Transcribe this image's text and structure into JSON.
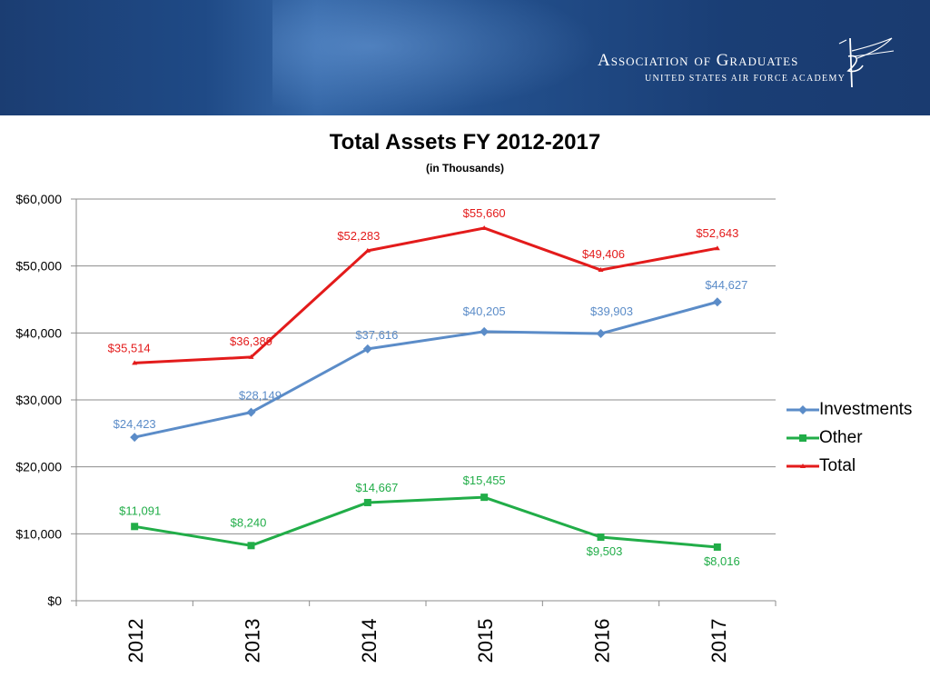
{
  "header": {
    "org_name": "Association of Graduates",
    "org_subtitle": "UNITED STATES AIR FORCE ACADEMY"
  },
  "colors": {
    "investments": "#5b8cc8",
    "other": "#21ad48",
    "total": "#e31b1b",
    "grid": "#8c8c8c"
  },
  "chart_data": {
    "type": "line",
    "title": "Total Assets FY 2012-2017",
    "subtitle": "(in Thousands)",
    "xlabel": "",
    "ylabel": "",
    "categories": [
      "2012",
      "2013",
      "2014",
      "2015",
      "2016",
      "2017"
    ],
    "ylim": [
      0,
      60000
    ],
    "yticks": [
      0,
      10000,
      20000,
      30000,
      40000,
      50000,
      60000
    ],
    "ytick_labels": [
      "$0",
      "$10,000",
      "$20,000",
      "$30,000",
      "$40,000",
      "$50,000",
      "$60,000"
    ],
    "grid": true,
    "legend_position": "right",
    "series": [
      {
        "name": "Investments",
        "key": "investments",
        "marker": "diamond",
        "values": [
          24423,
          28149,
          37616,
          40205,
          39903,
          44627
        ],
        "labels": [
          "$24,423",
          "$28,149",
          "$37,616",
          "$40,205",
          "$39,903",
          "$44,627"
        ]
      },
      {
        "name": "Other",
        "key": "other",
        "marker": "square",
        "values": [
          11091,
          8240,
          14667,
          15455,
          9503,
          8016
        ],
        "labels": [
          "$11,091",
          "$8,240",
          "$14,667",
          "$15,455",
          "$9,503",
          "$8,016"
        ]
      },
      {
        "name": "Total",
        "key": "total",
        "marker": "triangle",
        "values": [
          35514,
          36389,
          52283,
          55660,
          49406,
          52643
        ],
        "labels": [
          "$35,514",
          "$36,389",
          "$52,283",
          "$55,660",
          "$49,406",
          "$52,643"
        ]
      }
    ]
  }
}
